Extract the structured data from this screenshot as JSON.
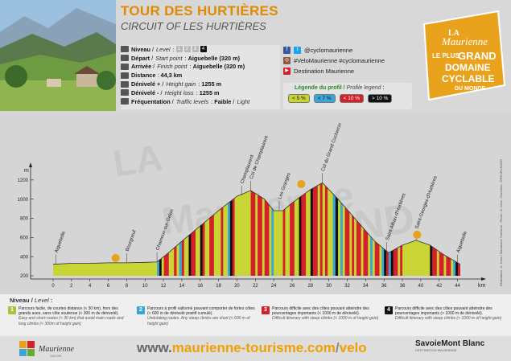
{
  "header": {
    "title": "TOUR DES HURTIÈRES",
    "subtitle": "CIRCUIT OF LES HURTIÈRES",
    "info": {
      "niveau_label": "Niveau",
      "level_label": "Level",
      "level_numbers": [
        "1",
        "2",
        "3",
        "4"
      ],
      "depart_label": "Départ",
      "start_label": "Start point",
      "depart_value": "Aiguebelle (320 m)",
      "arrivee_label": "Arrivée",
      "finish_label": "Finish point",
      "arrivee_value": "Aiguebelle (320 m)",
      "distance_label": "Distance",
      "distance_value": "44,3 km",
      "gain_label": "Dénivelé +",
      "gain_en": "Height gain",
      "gain_value": "1255 m",
      "loss_label": "Dénivelé -",
      "loss_en": "Height loss",
      "loss_value": "1255 m",
      "freq_label": "Fréquentation",
      "freq_en": "Traffic levels",
      "freq_value": "Faible",
      "freq_value_en": "Light"
    },
    "social": {
      "twitter_fb": "@cyclomaurienne",
      "instagram": "#VeloMaurienne #cyclomaurienne",
      "youtube": "Destination Maurienne"
    },
    "legend": {
      "title": "Légende du profil",
      "title_en": "Profile legend",
      "items": [
        {
          "label": "< 5 %",
          "color": "#c8d534"
        },
        {
          "label": "< 7 %",
          "color": "#3aa6d8"
        },
        {
          "label": "< 10 %",
          "color": "#d4202a"
        },
        {
          "label": "> 10 %",
          "color": "#111111"
        }
      ]
    },
    "badge": {
      "line1": "LA",
      "line2": "Maurienne",
      "line3": "LE PLUS",
      "line4": "GRAND",
      "line5": "DOMAINE",
      "line6": "CYCLABLE",
      "line7": "DU MONDE"
    }
  },
  "profile": {
    "y_unit": "m",
    "x_unit": "km",
    "credit": "Réalisation : A. Gras / Maurienne Tourisme - Photo : A. Gras - Données : OPENRUNNER",
    "watermark": [
      "LA",
      "Maurienne",
      "LE PLUS",
      "GRAND"
    ]
  },
  "chart_data": {
    "type": "area",
    "title": "",
    "xlabel": "km",
    "ylabel": "m",
    "xlim": [
      0,
      44.3
    ],
    "ylim": [
      200,
      1400
    ],
    "x_ticks": [
      0,
      2,
      4,
      6,
      8,
      10,
      12,
      14,
      16,
      18,
      20,
      22,
      24,
      26,
      28,
      30,
      32,
      34,
      36,
      38,
      40,
      42,
      44
    ],
    "y_ticks": [
      200,
      400,
      600,
      800,
      1000,
      1200
    ],
    "profile": [
      {
        "x": 0,
        "y": 320
      },
      {
        "x": 2,
        "y": 330
      },
      {
        "x": 4,
        "y": 330
      },
      {
        "x": 6,
        "y": 335
      },
      {
        "x": 8,
        "y": 335
      },
      {
        "x": 10,
        "y": 340
      },
      {
        "x": 11.3,
        "y": 345
      },
      {
        "x": 12.3,
        "y": 420
      },
      {
        "x": 14,
        "y": 560
      },
      {
        "x": 16,
        "y": 720
      },
      {
        "x": 18,
        "y": 880
      },
      {
        "x": 20,
        "y": 1030
      },
      {
        "x": 21.5,
        "y": 1090
      },
      {
        "x": 23,
        "y": 1000
      },
      {
        "x": 24,
        "y": 880
      },
      {
        "x": 25,
        "y": 880
      },
      {
        "x": 26,
        "y": 960
      },
      {
        "x": 28,
        "y": 1100
      },
      {
        "x": 29.3,
        "y": 1170
      },
      {
        "x": 31,
        "y": 1000
      },
      {
        "x": 33,
        "y": 780
      },
      {
        "x": 35,
        "y": 560
      },
      {
        "x": 36.5,
        "y": 440
      },
      {
        "x": 38,
        "y": 520
      },
      {
        "x": 39.5,
        "y": 570
      },
      {
        "x": 41,
        "y": 520
      },
      {
        "x": 42.5,
        "y": 420
      },
      {
        "x": 44.3,
        "y": 320
      }
    ],
    "places": [
      {
        "name": "Aiguebelle",
        "x": 0.3,
        "y": 320
      },
      {
        "name": "Bourgneuf",
        "x": 8,
        "y": 335
      },
      {
        "name": "Chamoux-sur-Gelon",
        "x": 11.3,
        "y": 345
      },
      {
        "name": "Champlaurent",
        "x": 20.5,
        "y": 1040
      },
      {
        "name": "Col de Champlaurent",
        "x": 21.5,
        "y": 1090
      },
      {
        "name": "Les Granges",
        "x": 24.6,
        "y": 880
      },
      {
        "name": "Col du Grand Cucheron",
        "x": 29.3,
        "y": 1170
      },
      {
        "name": "Saint-Alban-d'Hurtières",
        "x": 36.3,
        "y": 450
      },
      {
        "name": "Saint-Georges-d'Hurtières",
        "x": 39.5,
        "y": 570
      },
      {
        "name": "Aiguebelle",
        "x": 44,
        "y": 320
      }
    ]
  },
  "levels": {
    "title": "Niveau",
    "title_en": "Level",
    "items": [
      {
        "num": "1",
        "color": "#a8c23a",
        "fr": "Parcours facile, de courtes distance (< 30 km), hors des grands axes, sans côte soutenue (< 300 m de dénivelé).",
        "en": "Easy and short-routes (< 30 km) that avoid main roads and long climbs (< 300m of height gain)"
      },
      {
        "num": "2",
        "color": "#3aa6d8",
        "fr": "Parcours à profil vallonné pouvant comporter de fortes côtes (< 600 m de dénivelé positif cumulé).",
        "en": "Undulating routes. Any steep climbs are short (< 600 m of height gain)"
      },
      {
        "num": "3",
        "color": "#d4202a",
        "fr": "Parcours difficile avec des côtes pouvant atteindre des pourcentages importants (< 1000 m de dénivelé).",
        "en": "Difficult itinerary with steep climbs (< 1000 m of height gain)"
      },
      {
        "num": "4",
        "color": "#111111",
        "fr": "Parcours difficile avec des côtes pouvant atteindre des pourcentages importants (> 1000 m de dénivelé).",
        "en": "Difficult itinerary with steep climbs (> 1000 m of height gain)"
      }
    ]
  },
  "footer": {
    "url_pre": "www.",
    "url_main": "maurienne-tourisme.com",
    "url_slash": "/",
    "url_post": "velo",
    "logo_left": "Maurienne",
    "logo_left_sub": "SAVOIE",
    "logo_right": "SavoieMont Blanc",
    "logo_right_tag": "DESTINATION MAURIENNE"
  }
}
